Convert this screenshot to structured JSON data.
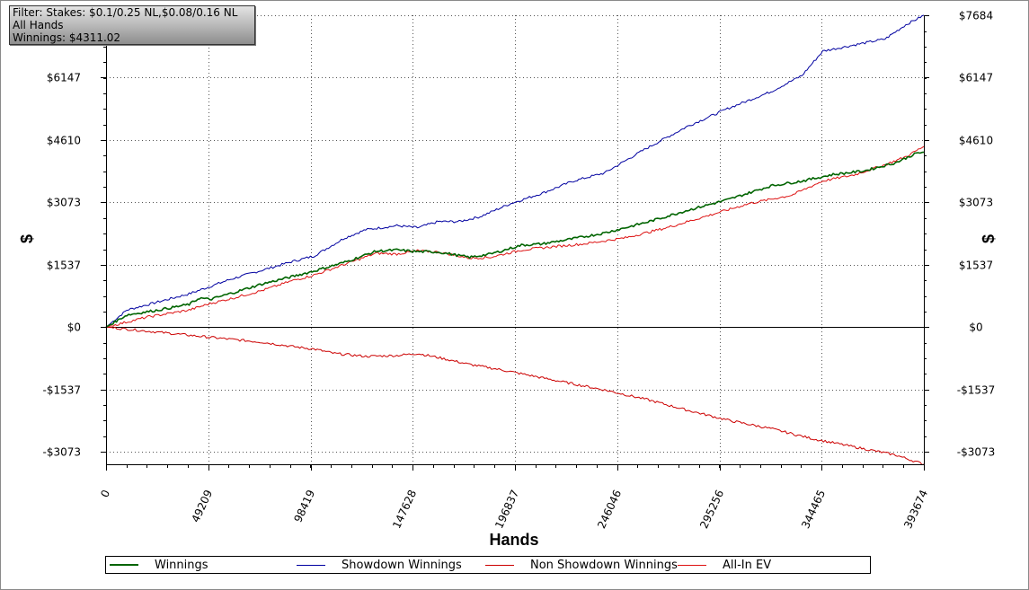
{
  "filter": {
    "line1": "Filter: Stakes: $0.1/0.25 NL,$0.08/0.16 NL",
    "line2": "All Hands",
    "line3": "Winnings: $4311.02"
  },
  "colors": {
    "winnings": "#006400",
    "showdown": "#0000a0",
    "non_showdown": "#cc0000",
    "allin_ev": "#dd1010"
  },
  "chart_data": {
    "type": "line",
    "title": "",
    "xlabel": "Hands",
    "ylabel": "$",
    "xlim": [
      0,
      393674
    ],
    "ylim": [
      -3380,
      7684
    ],
    "x_ticks": [
      0,
      49209,
      98419,
      147628,
      196837,
      246046,
      295256,
      344465,
      393674
    ],
    "x_tick_labels": [
      "0",
      "49209",
      "98419",
      "147628",
      "196837",
      "246046",
      "295256",
      "344465",
      "393674"
    ],
    "y_ticks": [
      -3073,
      -1537,
      0,
      1537,
      3073,
      4610,
      6147,
      7684
    ],
    "y_tick_labels": [
      "-$3073",
      "-$1537",
      "$0",
      "$1537",
      "$3073",
      "$4610",
      "$6147",
      "$7684"
    ],
    "grid": true,
    "legend_position": "bottom",
    "series": [
      {
        "name": "Winnings",
        "x": [
          0,
          10000,
          25000,
          40000,
          45000,
          50000,
          60000,
          75000,
          90000,
          100000,
          115000,
          130000,
          140000,
          150000,
          160000,
          175000,
          185000,
          200000,
          210000,
          225000,
          240000,
          260000,
          280000,
          300000,
          320000,
          335000,
          350000,
          365000,
          380000,
          390000,
          393674
        ],
        "y": [
          0,
          300,
          420,
          560,
          720,
          680,
          830,
          1060,
          1250,
          1380,
          1600,
          1870,
          1900,
          1860,
          1850,
          1720,
          1800,
          2020,
          2050,
          2180,
          2320,
          2580,
          2880,
          3150,
          3480,
          3600,
          3760,
          3850,
          4050,
          4280,
          4311
        ]
      },
      {
        "name": "Showdown Winnings",
        "x": [
          0,
          10000,
          25000,
          40000,
          50000,
          60000,
          75000,
          90000,
          100000,
          115000,
          125000,
          140000,
          150000,
          160000,
          170000,
          180000,
          195000,
          210000,
          225000,
          240000,
          260000,
          280000,
          300000,
          320000,
          335000,
          345000,
          360000,
          375000,
          385000,
          393674
        ],
        "y": [
          0,
          420,
          620,
          820,
          1000,
          1180,
          1400,
          1620,
          1750,
          2200,
          2400,
          2500,
          2450,
          2600,
          2600,
          2720,
          3050,
          3300,
          3600,
          3800,
          4400,
          4950,
          5400,
          5800,
          6200,
          6800,
          6950,
          7100,
          7450,
          7684
        ]
      },
      {
        "name": "Non Showdown Winnings",
        "x": [
          0,
          20000,
          40000,
          50000,
          60000,
          75000,
          90000,
          100000,
          110000,
          125000,
          140000,
          150000,
          160000,
          175000,
          190000,
          205000,
          220000,
          240000,
          260000,
          280000,
          300000,
          320000,
          340000,
          355000,
          370000,
          380000,
          393674
        ],
        "y": [
          0,
          -100,
          -200,
          -250,
          -300,
          -370,
          -480,
          -540,
          -650,
          -720,
          -700,
          -650,
          -750,
          -920,
          -1050,
          -1200,
          -1350,
          -1550,
          -1780,
          -2050,
          -2300,
          -2500,
          -2750,
          -2900,
          -3050,
          -3150,
          -3380
        ]
      },
      {
        "name": "All-In EV",
        "x": [
          0,
          20000,
          40000,
          50000,
          60000,
          75000,
          90000,
          100000,
          115000,
          130000,
          140000,
          150000,
          160000,
          175000,
          185000,
          200000,
          215000,
          230000,
          250000,
          270000,
          290000,
          310000,
          330000,
          345000,
          360000,
          375000,
          385000,
          393674
        ],
        "y": [
          0,
          250,
          420,
          580,
          700,
          900,
          1150,
          1280,
          1550,
          1820,
          1800,
          1880,
          1850,
          1700,
          1720,
          1900,
          1980,
          2050,
          2200,
          2450,
          2750,
          3050,
          3250,
          3600,
          3750,
          4000,
          4200,
          4450
        ]
      }
    ]
  }
}
